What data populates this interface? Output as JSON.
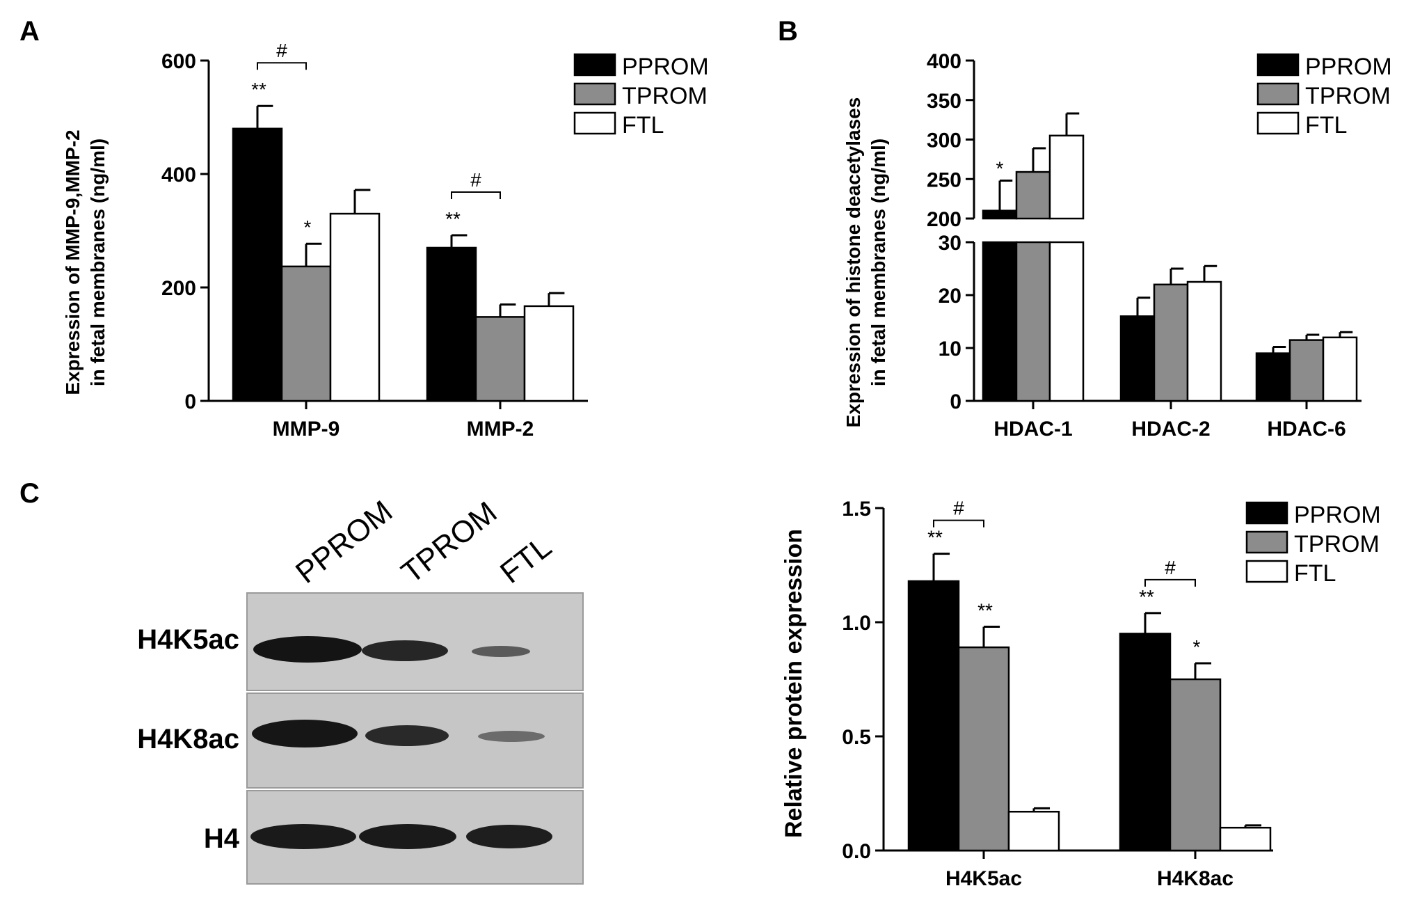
{
  "panels": {
    "A": {
      "letter": "A",
      "ylabel_line1": "Expression of MMP-9,MMP-2",
      "ylabel_line2": "in fetal membranes (ng/ml)",
      "legend": [
        "PPROM",
        "TPROM",
        "FTL"
      ]
    },
    "B": {
      "letter": "B",
      "ylabel_line1": "Expression of histone deacetylases",
      "ylabel_line2": "in fetal membranes (ng/ml)",
      "legend": [
        "PPROM",
        "TPROM",
        "FTL"
      ]
    },
    "C": {
      "letter": "C",
      "lanes": [
        "PPROM",
        "TPROM",
        "FTL"
      ],
      "bands": [
        "H4K5ac",
        "H4K8ac",
        "H4"
      ],
      "ylabel": "Relative protein expression",
      "legend": [
        "PPROM",
        "TPROM",
        "FTL"
      ]
    }
  },
  "colors": {
    "PPROM": "#000000",
    "TPROM": "#8c8c8c",
    "FTL": "#ffffff"
  },
  "chart_data": [
    {
      "type": "bar",
      "panel": "A",
      "categories": [
        "MMP-9",
        "MMP-2"
      ],
      "series": [
        {
          "name": "PPROM",
          "values": [
            480,
            270
          ],
          "errors": [
            40,
            22
          ],
          "sig": [
            "**",
            "**"
          ]
        },
        {
          "name": "TPROM",
          "values": [
            237,
            148
          ],
          "errors": [
            40,
            22
          ],
          "sig": [
            "*",
            ""
          ]
        },
        {
          "name": "FTL",
          "values": [
            330,
            167
          ],
          "errors": [
            42,
            23
          ],
          "sig": [
            "",
            ""
          ]
        }
      ],
      "yticks": [
        0,
        200,
        400,
        600
      ],
      "ylim": [
        0,
        600
      ],
      "brackets": [
        {
          "category": 0,
          "label": "#"
        },
        {
          "category": 1,
          "label": "#"
        }
      ],
      "xlabel": "",
      "ylabel": "Expression of MMP-9,MMP-2 in fetal membranes (ng/ml)",
      "legend_position": "top-right"
    },
    {
      "type": "bar",
      "panel": "B",
      "categories": [
        "HDAC-1",
        "HDAC-2",
        "HDAC-6"
      ],
      "series": [
        {
          "name": "PPROM",
          "values": [
            210,
            16,
            9
          ],
          "errors": [
            38,
            3.5,
            1.2
          ],
          "sig": [
            "*",
            "",
            ""
          ]
        },
        {
          "name": "TPROM",
          "values": [
            259,
            22,
            11.5
          ],
          "errors": [
            30,
            3,
            1
          ]
        },
        {
          "name": "FTL",
          "values": [
            305,
            22.5,
            12
          ],
          "errors": [
            28,
            3,
            1
          ]
        }
      ],
      "yticks_lower": [
        0,
        10,
        20,
        30
      ],
      "yticks_upper": [
        200,
        250,
        300,
        350,
        400
      ],
      "y_axis_break": [
        30,
        200
      ],
      "xlabel": "",
      "ylabel": "Expression of histone deacetylases in fetal membranes (ng/ml)",
      "legend_position": "top-right"
    },
    {
      "type": "bar",
      "panel": "C",
      "categories": [
        "H4K5ac",
        "H4K8ac"
      ],
      "series": [
        {
          "name": "PPROM",
          "values": [
            1.18,
            0.95
          ],
          "errors": [
            0.12,
            0.09
          ],
          "sig": [
            "**",
            "**"
          ]
        },
        {
          "name": "TPROM",
          "values": [
            0.89,
            0.75
          ],
          "errors": [
            0.09,
            0.07
          ],
          "sig": [
            "**",
            "*"
          ]
        },
        {
          "name": "FTL",
          "values": [
            0.17,
            0.1
          ],
          "errors": [
            0.015,
            0.01
          ],
          "sig": [
            "",
            ""
          ]
        }
      ],
      "yticks": [
        "0.0",
        "0.5",
        "1.0",
        "1.5"
      ],
      "ylim": [
        0,
        1.5
      ],
      "brackets": [
        {
          "category": 0,
          "label": "#"
        },
        {
          "category": 1,
          "label": "#"
        }
      ],
      "xlabel": "",
      "ylabel": "Relative protein expression",
      "legend_position": "top-right"
    }
  ]
}
